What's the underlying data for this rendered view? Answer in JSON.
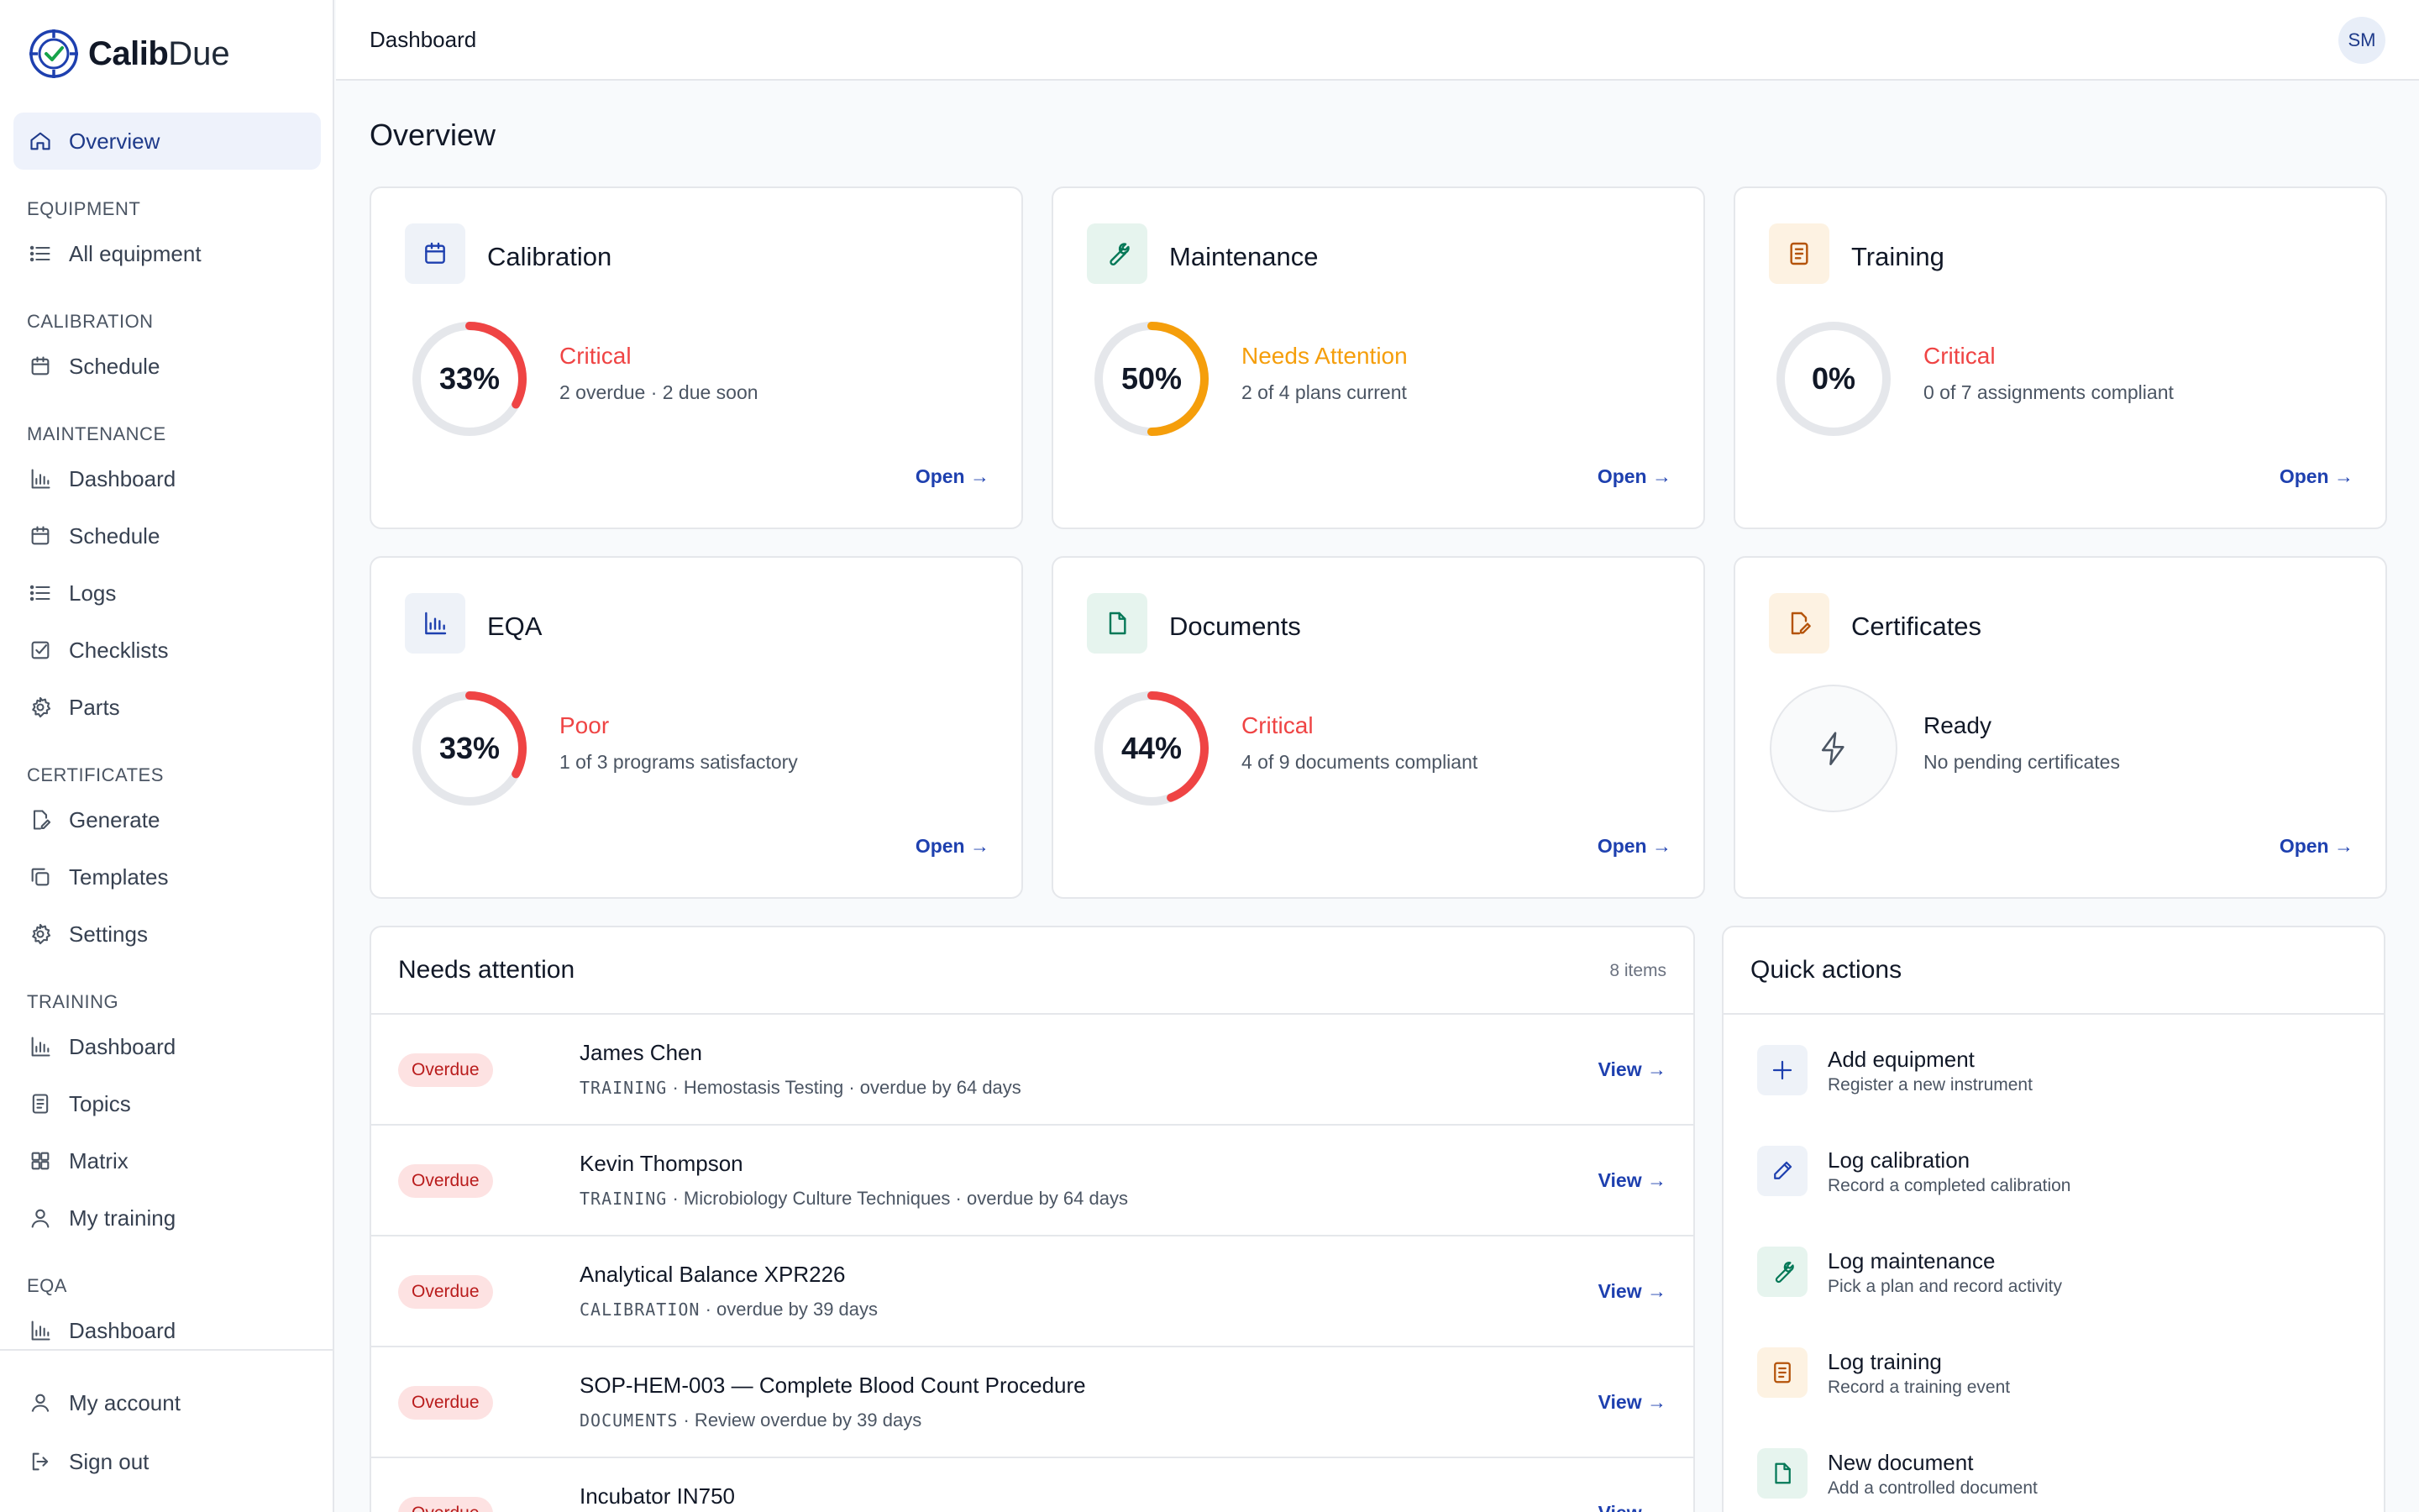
{
  "app": {
    "brand_bold": "Calib",
    "brand_rest": "Due"
  },
  "sidebar": {
    "overview": "Overview",
    "sections": [
      {
        "title": "EQUIPMENT",
        "items": [
          {
            "label": "All equipment",
            "icon": "list-icon"
          }
        ]
      },
      {
        "title": "CALIBRATION",
        "items": [
          {
            "label": "Schedule",
            "icon": "calendar-icon"
          }
        ]
      },
      {
        "title": "MAINTENANCE",
        "items": [
          {
            "label": "Dashboard",
            "icon": "bar-chart-icon"
          },
          {
            "label": "Schedule",
            "icon": "calendar-icon"
          },
          {
            "label": "Logs",
            "icon": "list-icon"
          },
          {
            "label": "Checklists",
            "icon": "checkbox-icon"
          },
          {
            "label": "Parts",
            "icon": "gear-icon"
          }
        ]
      },
      {
        "title": "CERTIFICATES",
        "items": [
          {
            "label": "Generate",
            "icon": "edit-file-icon"
          },
          {
            "label": "Templates",
            "icon": "copy-icon"
          },
          {
            "label": "Settings",
            "icon": "gear-icon"
          }
        ]
      },
      {
        "title": "TRAINING",
        "items": [
          {
            "label": "Dashboard",
            "icon": "bar-chart-icon"
          },
          {
            "label": "Topics",
            "icon": "document-icon"
          },
          {
            "label": "Matrix",
            "icon": "grid-icon"
          },
          {
            "label": "My training",
            "icon": "user-icon"
          }
        ]
      },
      {
        "title": "EQA",
        "items": [
          {
            "label": "Dashboard",
            "icon": "bar-chart-icon"
          }
        ]
      }
    ],
    "account": "My account",
    "signout": "Sign out"
  },
  "topbar": {
    "title": "Dashboard",
    "avatar": "SM"
  },
  "main": {
    "title": "Overview",
    "cards": [
      {
        "name": "Calibration",
        "icon": "calendar-icon",
        "pct_label": "33%",
        "progress": 0.33,
        "status": "Critical",
        "sub": "2 overdue · 2 due soon",
        "open": "Open →",
        "color": "#ef4444",
        "tint": "blue"
      },
      {
        "name": "Maintenance",
        "icon": "wrench-icon",
        "pct_label": "50%",
        "progress": 0.5,
        "status": "Needs Attention",
        "sub": "2 of 4 plans current",
        "open": "Open →",
        "color": "#f59e0b",
        "tint": "green"
      },
      {
        "name": "Training",
        "icon": "document-icon",
        "pct_label": "0%",
        "progress": 0,
        "status": "Critical",
        "sub": "0 of 7 assignments compliant",
        "open": "Open →",
        "color": "#ef4444",
        "tint": "amber"
      },
      {
        "name": "EQA",
        "icon": "bar-chart-icon",
        "pct_label": "33%",
        "progress": 0.33,
        "status": "Poor",
        "sub": "1 of 3 programs satisfactory",
        "open": "Open →",
        "color": "#ef4444",
        "tint": "blue"
      },
      {
        "name": "Documents",
        "icon": "file-icon",
        "pct_label": "44%",
        "progress": 0.44,
        "status": "Critical",
        "sub": "4 of 9 documents compliant",
        "open": "Open →",
        "color": "#ef4444",
        "tint": "green"
      },
      {
        "name": "Certificates",
        "icon": "edit-file-icon",
        "status": "Ready",
        "sub": "No pending certificates",
        "open": "Open →",
        "color": "#111827",
        "tint": "amber"
      }
    ],
    "attention": {
      "title": "Needs attention",
      "count": "8 items",
      "rows": [
        {
          "badge": "Overdue",
          "title": "James Chen",
          "module": "TRAINING",
          "detail": " · Hemostasis Testing · overdue by 64 days",
          "action": "View →"
        },
        {
          "badge": "Overdue",
          "title": "Kevin Thompson",
          "module": "TRAINING",
          "detail": " · Microbiology Culture Techniques · overdue by 64 days",
          "action": "View →"
        },
        {
          "badge": "Overdue",
          "title": "Analytical Balance XPR226",
          "module": "CALIBRATION",
          "detail": " · overdue by 39 days",
          "action": "View →"
        },
        {
          "badge": "Overdue",
          "title": "SOP-HEM-003 — Complete Blood Count Procedure",
          "module": "DOCUMENTS",
          "detail": " · Review overdue by 39 days",
          "action": "View →"
        },
        {
          "badge": "Overdue",
          "title": "Incubator IN750",
          "module": "",
          "detail": "",
          "action": "View →"
        }
      ]
    },
    "quick": {
      "title": "Quick actions",
      "items": [
        {
          "title": "Add equipment",
          "sub": "Register a new instrument",
          "icon": "plus-icon",
          "tint": "blue"
        },
        {
          "title": "Log calibration",
          "sub": "Record a completed calibration",
          "icon": "pencil-icon",
          "tint": "blue"
        },
        {
          "title": "Log maintenance",
          "sub": "Pick a plan and record activity",
          "icon": "wrench-icon",
          "tint": "green"
        },
        {
          "title": "Log training",
          "sub": "Record a training event",
          "icon": "document-icon",
          "tint": "amber"
        },
        {
          "title": "New document",
          "sub": "Add a controlled document",
          "icon": "file-icon",
          "tint": "green"
        }
      ]
    }
  },
  "colors": {
    "accent": "#1e40af",
    "critical": "#ef4444",
    "warning": "#f59e0b",
    "track": "#e5e7eb"
  }
}
